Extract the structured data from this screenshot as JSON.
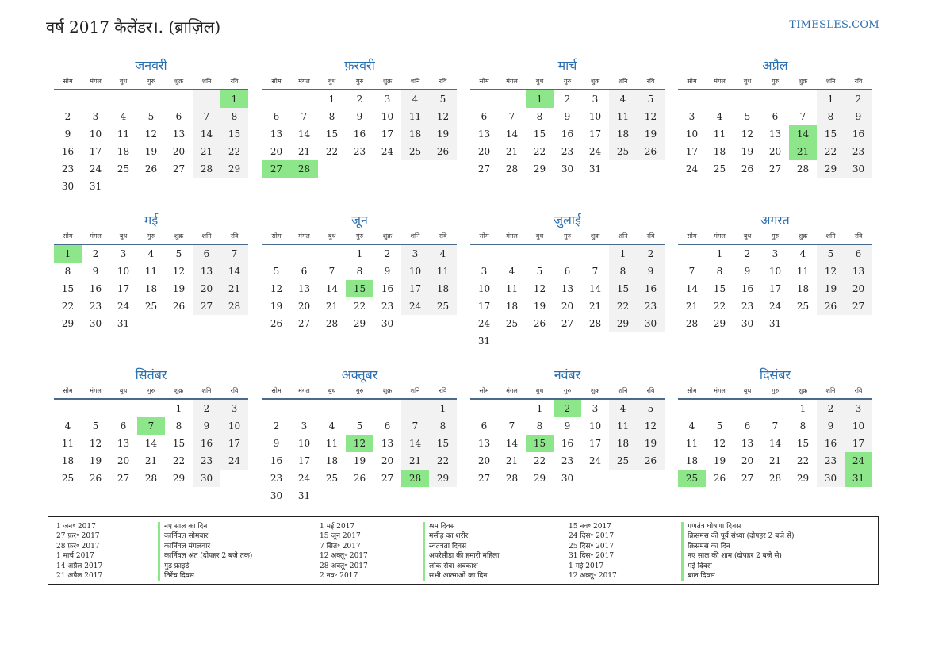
{
  "header": {
    "title": "वर्ष 2017 कैलेंडर।. (ब्राज़िल)",
    "site": "TIMESLES.COM"
  },
  "weekdays": [
    "सोम",
    "मंगल",
    "बुध",
    "गुरु",
    "शुक्र",
    "शनि",
    "रवि"
  ],
  "months": [
    {
      "name": "जनवरी",
      "offset": 6,
      "days": 31,
      "holidays": [
        1
      ]
    },
    {
      "name": "फ़रवरी",
      "offset": 2,
      "days": 28,
      "holidays": [
        27,
        28
      ]
    },
    {
      "name": "मार्च",
      "offset": 2,
      "days": 31,
      "holidays": [
        1
      ]
    },
    {
      "name": "अप्रैल",
      "offset": 5,
      "days": 30,
      "holidays": [
        14,
        21
      ]
    },
    {
      "name": "मई",
      "offset": 0,
      "days": 31,
      "holidays": [
        1
      ]
    },
    {
      "name": "जून",
      "offset": 3,
      "days": 30,
      "holidays": [
        15
      ]
    },
    {
      "name": "जुलाई",
      "offset": 5,
      "days": 31,
      "holidays": []
    },
    {
      "name": "अगस्त",
      "offset": 1,
      "days": 31,
      "holidays": []
    },
    {
      "name": "सितंबर",
      "offset": 4,
      "days": 30,
      "holidays": [
        7
      ]
    },
    {
      "name": "अक्तूबर",
      "offset": 6,
      "days": 31,
      "holidays": [
        12,
        28
      ]
    },
    {
      "name": "नवंबर",
      "offset": 2,
      "days": 30,
      "holidays": [
        2,
        15
      ]
    },
    {
      "name": "दिसंबर",
      "offset": 4,
      "days": 31,
      "holidays": [
        24,
        25,
        31
      ]
    }
  ],
  "holiday_list": {
    "col1_dates": [
      "1 जन॰ 2017",
      "27 फ़र॰ 2017",
      "28 फ़र॰ 2017",
      "1 मार्च 2017",
      "14 अप्रैल 2017",
      "21 अप्रैल 2017"
    ],
    "col1_names": [
      "नए साल का दिन",
      "कार्निवल सोमवार",
      "कार्निवल मंगलवार",
      "कार्निवल अंत (दोपहर 2 बजे तक)",
      "गुड फ्राइडे",
      "तिरेंच दिवस"
    ],
    "col2_dates": [
      "1 मई 2017",
      "15 जून 2017",
      "7 सित॰ 2017",
      "12 अक्तू॰ 2017",
      "28 अक्तू॰ 2017",
      "2 नव॰ 2017"
    ],
    "col2_names": [
      "श्रम दिवस",
      "मसीह का शरीर",
      "स्वतंत्रता दिवस",
      "अपरेसीडा की हमारी महिला",
      "लोक सेवा अवकाश",
      "सभी आत्माओं का दिन"
    ],
    "col3_dates": [
      "15 नव॰ 2017",
      "24 दिस॰ 2017",
      "25 दिस॰ 2017",
      "31 दिस॰ 2017",
      "1 मई 2017",
      "12 अक्तू॰ 2017"
    ],
    "col3_names": [
      "गणतंत्र घोषणा दिवस",
      "क्रिसमस की पूर्व संध्या (दोपहर 2 बजे से)",
      "क्रिसमस का दिन",
      "नए साल की शाम (दोपहर 2 बजे से)",
      "मई दिवस",
      "बाल दिवस"
    ]
  },
  "colors": {
    "accent": "#2a6fb0",
    "holiday": "#8ee68a",
    "weekend": "#f2f2f2"
  }
}
